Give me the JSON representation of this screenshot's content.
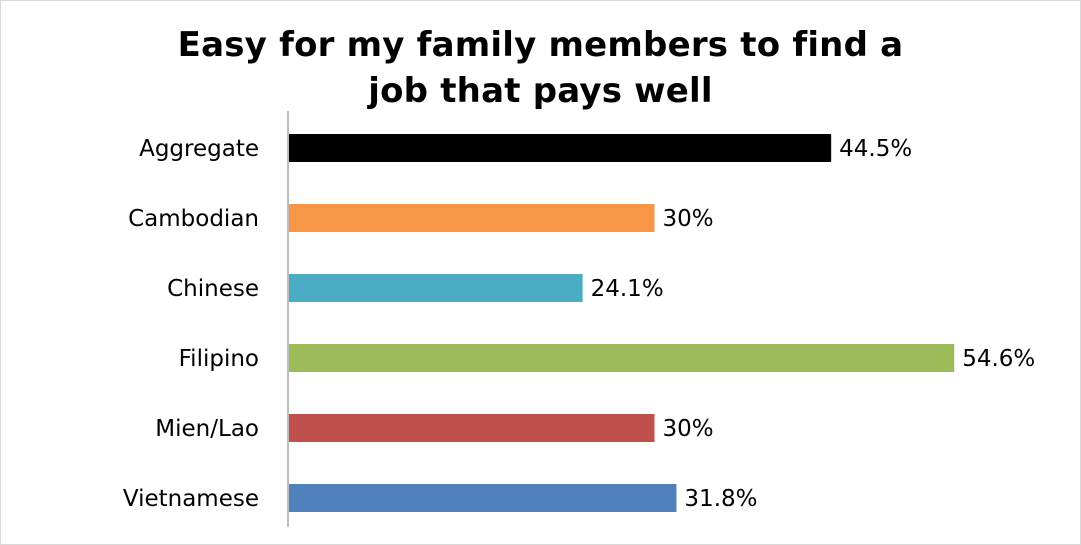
{
  "chart_data": {
    "type": "bar",
    "orientation": "horizontal",
    "title": [
      "Easy for my family members to find a",
      "job that pays well"
    ],
    "categories": [
      "Aggregate",
      "Cambodian",
      "Chinese",
      "Filipino",
      "Mien/Lao",
      "Vietnamese"
    ],
    "values": [
      44.5,
      30,
      24.1,
      54.6,
      30,
      31.8
    ],
    "value_labels": [
      "44.5%",
      "30%",
      "24.1%",
      "54.6%",
      "30%",
      "31.8%"
    ],
    "colors": [
      "#000000",
      "#F79646",
      "#4BACC6",
      "#9BBB59",
      "#C0504D",
      "#4F81BD"
    ],
    "xlim": [
      0,
      60
    ],
    "grid": false,
    "legend": "none"
  }
}
